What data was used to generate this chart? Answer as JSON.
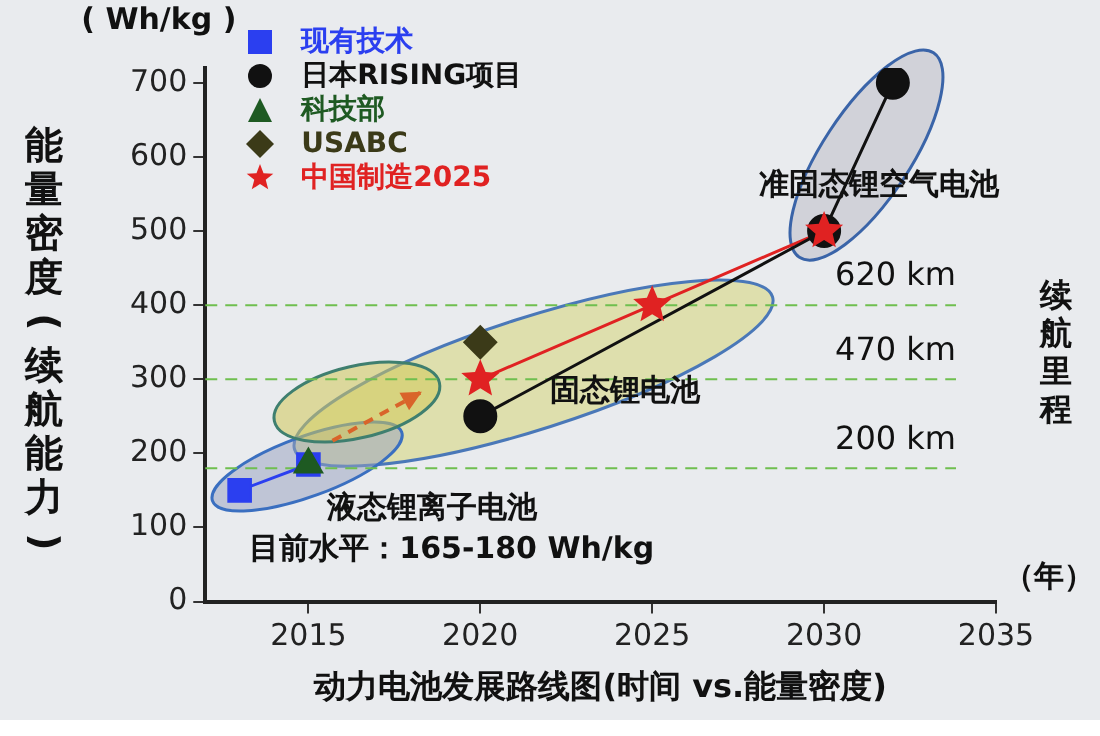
{
  "chart_data": {
    "type": "line",
    "xlabel": "动力电池发展路线图(时间 vs.能量密度)",
    "ylabel": "能量密度(续航能力)",
    "xlim": [
      2012,
      2035
    ],
    "xticks": [
      2015,
      2020,
      2025,
      2030,
      2035
    ],
    "ylim": [
      0,
      720
    ],
    "yticks": [
      0,
      100,
      200,
      300,
      400,
      500,
      600,
      700
    ],
    "grid": false,
    "legend": "top left",
    "series": [
      {
        "name": "现有技术",
        "type": "line",
        "marker": "square",
        "color": "#2b3ff0",
        "x": [
          2013,
          2015
        ],
        "values": [
          150,
          185
        ]
      },
      {
        "name": "日本RISING项目",
        "type": "line",
        "marker": "circle",
        "color": "#111111",
        "x": [
          2020,
          2030,
          2032
        ],
        "values": [
          250,
          500,
          700
        ]
      },
      {
        "name": "科技部",
        "type": "scatter",
        "marker": "triangle",
        "color": "#1e5a22",
        "x": [
          2015
        ],
        "values": [
          185
        ]
      },
      {
        "name": "USABC",
        "type": "scatter",
        "marker": "diamond",
        "color": "#3b3a18",
        "x": [
          2020
        ],
        "values": [
          350
        ]
      },
      {
        "name": "中国制造2025",
        "type": "line",
        "marker": "star",
        "color": "#e02222",
        "x": [
          2020,
          2025,
          2030
        ],
        "values": [
          300,
          400,
          500
        ]
      }
    ],
    "ref_lines": [
      {
        "axis": "y",
        "value": 400,
        "label": "620 km",
        "color": "#6fbf4f",
        "line_style": "dashed"
      },
      {
        "axis": "y",
        "value": 300,
        "label": "470 km",
        "color": "#6fbf4f",
        "line_style": "dashed"
      },
      {
        "axis": "y",
        "value": 180,
        "label": "200 km",
        "color": "#6fbf4f",
        "line_style": "dashed"
      }
    ],
    "annotations": [
      "( Wh/kg )",
      "目前水平：165-180 Wh/kg",
      "（年）",
      "续航里程",
      "液态锂离子电池",
      "固态锂电池",
      "准固态锂空气电池"
    ]
  }
}
